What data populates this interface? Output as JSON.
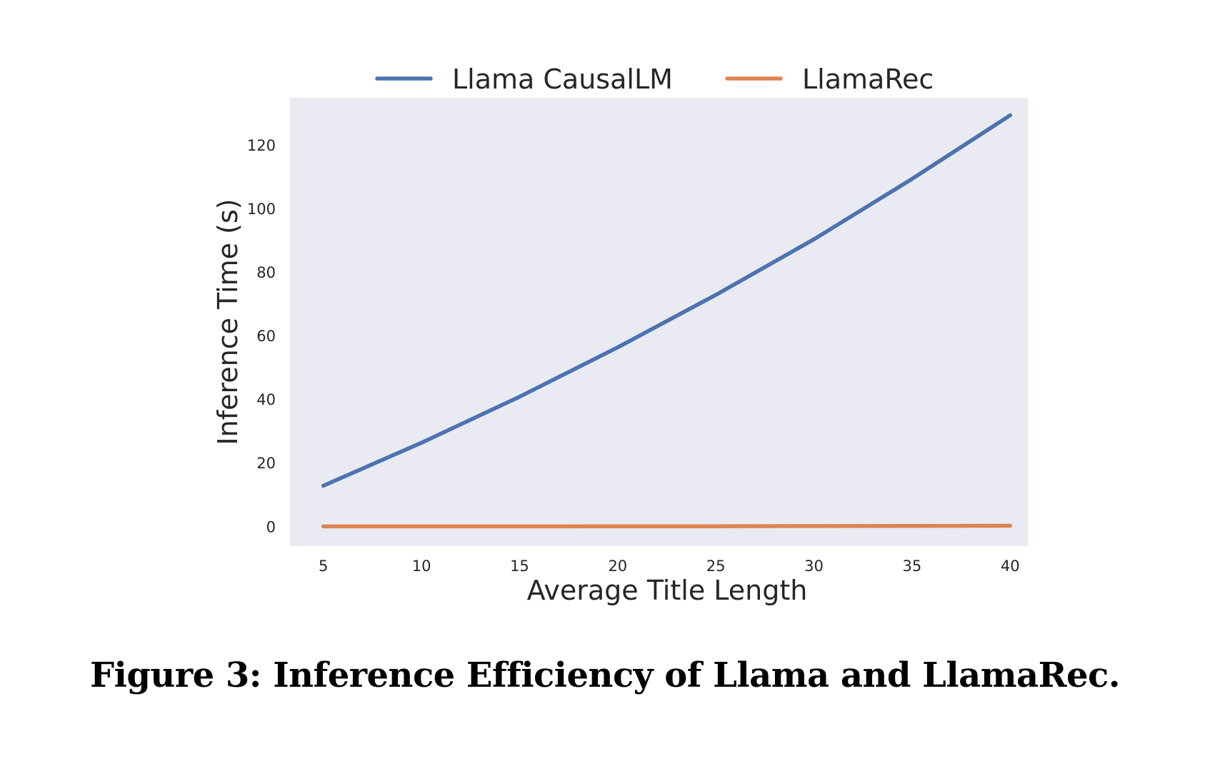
{
  "chart_data": {
    "type": "line",
    "xlabel": "Average Title Length",
    "ylabel": "Inference Time (s)",
    "x": [
      5,
      10,
      15,
      20,
      25,
      30,
      35,
      40
    ],
    "x_ticks": [
      5,
      10,
      15,
      20,
      25,
      30,
      35,
      40
    ],
    "y_ticks": [
      0,
      20,
      40,
      60,
      80,
      100,
      120
    ],
    "xlim": [
      3.3,
      40.9
    ],
    "ylim": [
      -6,
      135
    ],
    "grid": false,
    "legend_placement": "top-center",
    "plot_background": "#eaeaf2",
    "series": [
      {
        "name": "Llama CausalLM",
        "color": "#4c72b0",
        "values": [
          13,
          26.5,
          41,
          56.5,
          73,
          90.5,
          109.5,
          129.5
        ]
      },
      {
        "name": "LlamaRec",
        "color": "#dd8452",
        "values": [
          0.2,
          0.2,
          0.2,
          0.25,
          0.25,
          0.3,
          0.35,
          0.4
        ]
      }
    ]
  },
  "caption": "Figure 3: Inference Efficiency of Llama and LlamaRec."
}
